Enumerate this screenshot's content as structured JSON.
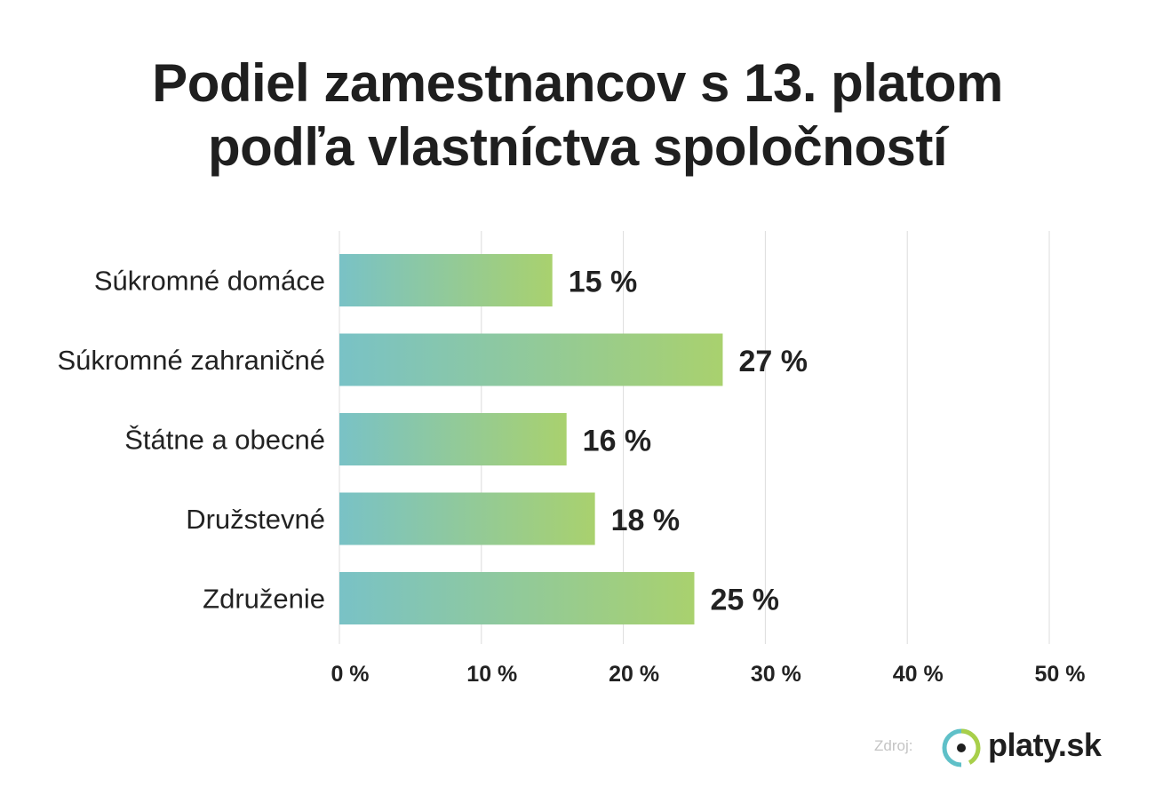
{
  "title_line1": "Podiel zamestnancov s 13. platom",
  "title_line2": "podľa vlastníctva spoločností",
  "source_label": "Zdroj:",
  "logo_text": "platy.sk",
  "colors": {
    "bar_start": "#79c2c6",
    "bar_end": "#a9d16e",
    "grid": "#dcdcdc",
    "text": "#222222",
    "logo_ring_teal": "#5fc0c8",
    "logo_ring_green": "#a8cf4a"
  },
  "chart_data": {
    "type": "bar",
    "orientation": "horizontal",
    "categories": [
      "Súkromné domáce",
      "Súkromné zahraničné",
      "Štátne a obecné",
      "Družstevné",
      "Združenie"
    ],
    "values": [
      15,
      27,
      16,
      18,
      25
    ],
    "value_labels": [
      "15 %",
      "27 %",
      "16 %",
      "18 %",
      "25 %"
    ],
    "xlim": [
      0,
      50
    ],
    "xticks": [
      0,
      10,
      20,
      30,
      40,
      50
    ],
    "xtick_labels": [
      "0 %",
      "10 %",
      "20 %",
      "30 %",
      "40 %",
      "50 %"
    ],
    "grid": true,
    "legend": "none"
  }
}
